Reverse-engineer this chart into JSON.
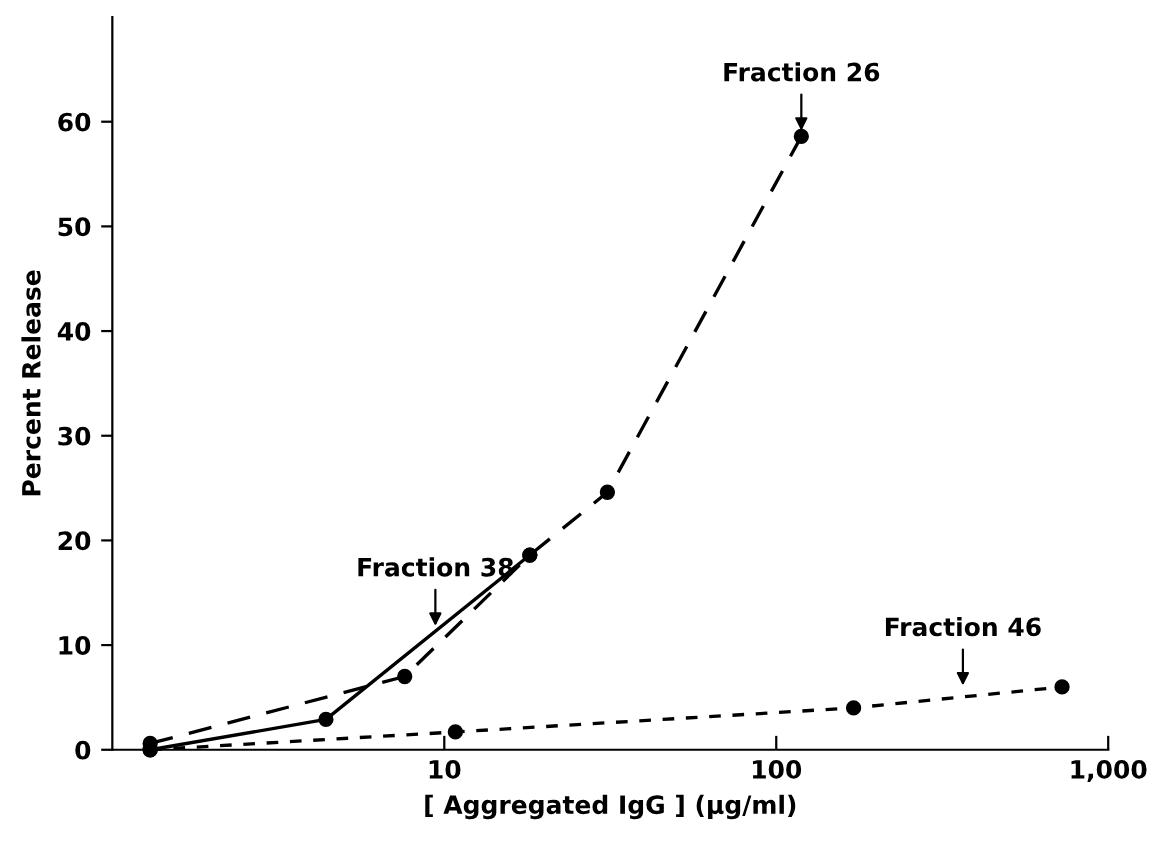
{
  "chart_data": {
    "type": "line",
    "xlabel": "[ Aggregated IgG ] (μg/ml)",
    "ylabel": "Percent Release",
    "log": "x",
    "xlim": [
      1,
      1000
    ],
    "xticks": [
      10,
      100,
      {
        "value": 1000,
        "label": "1,000"
      }
    ],
    "ylim": [
      0,
      70
    ],
    "yticks": [
      0,
      10,
      20,
      30,
      40,
      50,
      60
    ],
    "grid": false,
    "legend": false,
    "marker": "circle",
    "series": [
      {
        "color": "#000000",
        "line_style": "dashed",
        "x": [
          1.3,
          7.6,
          18.1,
          31,
          119
        ],
        "values": [
          0.6,
          7.0,
          18.6,
          24.6,
          58.6
        ]
      },
      {
        "color": "#000000",
        "line_style": "solid",
        "x": [
          1.3,
          4.4,
          18.1
        ],
        "values": [
          0,
          2.9,
          18.6
        ]
      },
      {
        "color": "#000000",
        "line_style": "dotted",
        "x": [
          1.3,
          10.8,
          171,
          726
        ],
        "values": [
          0,
          1.7,
          4.0,
          6.0
        ]
      }
    ],
    "annotations": [
      {
        "text": "Fraction 26",
        "x": 119,
        "y": 58.6
      },
      {
        "text": "Fraction 38",
        "x": 9.4,
        "y": 11.3
      },
      {
        "text": "Fraction 46",
        "x": 365,
        "y": 5.6
      }
    ]
  }
}
